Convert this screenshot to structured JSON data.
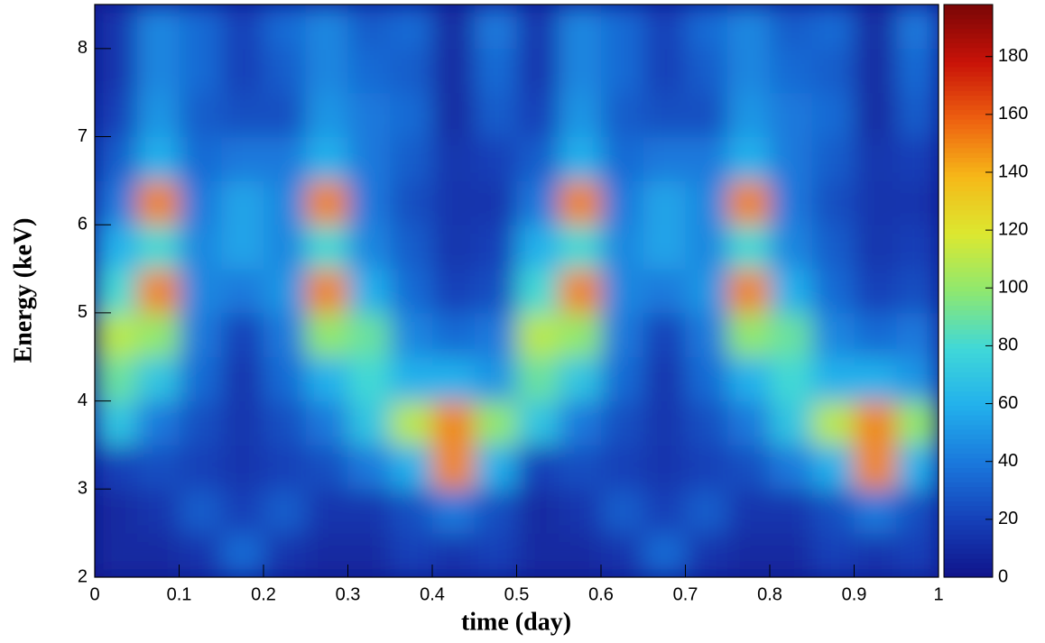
{
  "chart_data": {
    "type": "heatmap",
    "xlabel": "time (day)",
    "ylabel": "Energy (keV)",
    "xlim": [
      0,
      1
    ],
    "ylim": [
      2,
      8.5
    ],
    "zlim": [
      0,
      198
    ],
    "xticks": [
      0,
      0.1,
      0.2,
      0.3,
      0.4,
      0.5,
      0.6,
      0.7,
      0.8,
      0.9,
      1
    ],
    "yticks": [
      2,
      3,
      4,
      5,
      6,
      7,
      8
    ],
    "zticks": [
      0,
      20,
      40,
      60,
      80,
      100,
      120,
      140,
      160,
      180
    ],
    "colormap": [
      "#10138a",
      "#1540b8",
      "#1a78dc",
      "#22b0ec",
      "#40d8d8",
      "#8ee870",
      "#dce830",
      "#f6b818",
      "#ee6010",
      "#c81208",
      "#7a0606"
    ],
    "z": [
      [
        10,
        10,
        15,
        35,
        15,
        10,
        10,
        20,
        15,
        20,
        10,
        10,
        15,
        35,
        15,
        10,
        10,
        20,
        15,
        20
      ],
      [
        10,
        15,
        30,
        20,
        30,
        15,
        15,
        25,
        40,
        25,
        10,
        15,
        30,
        20,
        30,
        15,
        15,
        25,
        40,
        25
      ],
      [
        20,
        25,
        20,
        15,
        20,
        25,
        40,
        60,
        150,
        60,
        20,
        25,
        20,
        15,
        20,
        25,
        40,
        60,
        150,
        60
      ],
      [
        70,
        40,
        25,
        15,
        25,
        40,
        70,
        110,
        150,
        100,
        70,
        40,
        25,
        15,
        25,
        40,
        70,
        110,
        150,
        100
      ],
      [
        90,
        70,
        35,
        15,
        35,
        60,
        80,
        60,
        60,
        50,
        90,
        70,
        35,
        15,
        35,
        60,
        80,
        60,
        60,
        50
      ],
      [
        110,
        100,
        40,
        20,
        40,
        100,
        90,
        45,
        35,
        40,
        110,
        100,
        40,
        20,
        40,
        100,
        90,
        45,
        35,
        40
      ],
      [
        80,
        150,
        45,
        40,
        50,
        150,
        60,
        35,
        20,
        25,
        80,
        150,
        45,
        40,
        50,
        150,
        60,
        35,
        20,
        25
      ],
      [
        60,
        80,
        45,
        55,
        45,
        80,
        45,
        30,
        15,
        20,
        60,
        80,
        45,
        55,
        45,
        80,
        45,
        30,
        15,
        20
      ],
      [
        40,
        150,
        40,
        55,
        45,
        150,
        40,
        25,
        15,
        15,
        40,
        150,
        40,
        55,
        45,
        150,
        40,
        25,
        15,
        15
      ],
      [
        30,
        60,
        35,
        40,
        40,
        60,
        40,
        30,
        15,
        20,
        30,
        60,
        35,
        40,
        40,
        60,
        40,
        30,
        15,
        20
      ],
      [
        20,
        50,
        30,
        25,
        25,
        50,
        40,
        35,
        10,
        30,
        20,
        50,
        30,
        25,
        25,
        50,
        40,
        35,
        10,
        30
      ],
      [
        15,
        45,
        35,
        20,
        30,
        45,
        35,
        30,
        10,
        35,
        15,
        45,
        35,
        20,
        30,
        45,
        35,
        30,
        10,
        35
      ],
      [
        15,
        45,
        35,
        20,
        35,
        45,
        30,
        35,
        10,
        40,
        15,
        45,
        35,
        20,
        35,
        45,
        30,
        35,
        10,
        40
      ]
    ]
  }
}
